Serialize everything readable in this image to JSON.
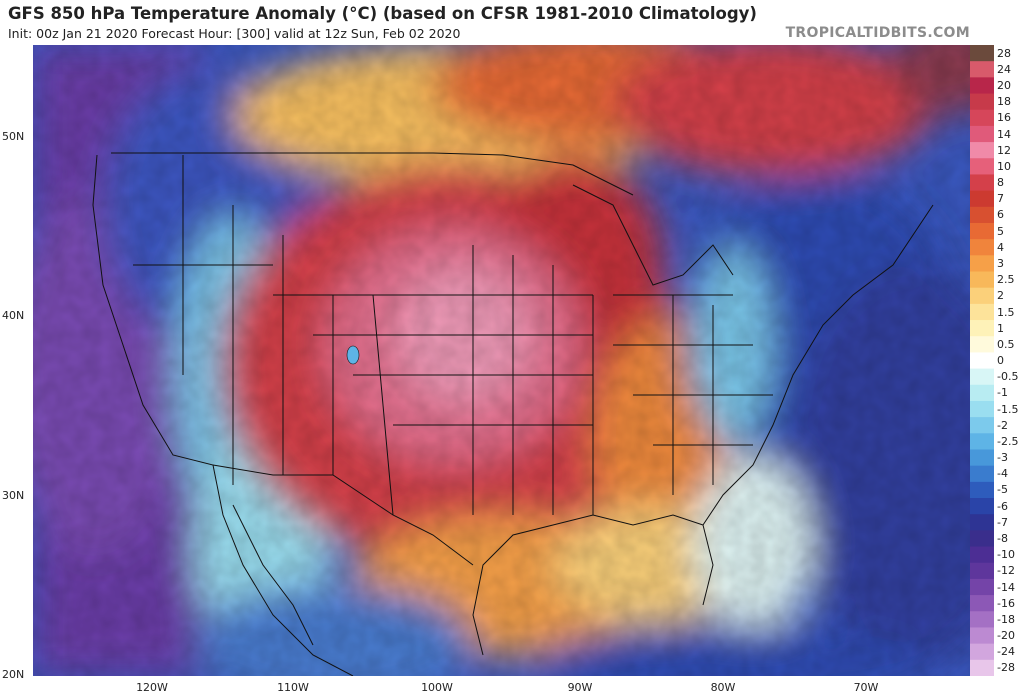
{
  "header": {
    "title": "GFS 850 hPa Temperature Anomaly (°C) (based on CFSR 1981-2010 Climatology)",
    "subtitle": "Init: 00z Jan 21 2020   Forecast Hour: [300]   valid at 12z Sun, Feb 02 2020",
    "watermark": "TROPICALTIDBITS.COM"
  },
  "map": {
    "lat_labels": [
      "50N",
      "40N",
      "30N",
      "20N"
    ],
    "lon_labels": [
      "120W",
      "110W",
      "100W",
      "90W",
      "80W",
      "70W"
    ]
  },
  "colorbar": {
    "levels": [
      "28",
      "24",
      "20",
      "18",
      "16",
      "14",
      "12",
      "10",
      "8",
      "7",
      "6",
      "5",
      "4",
      "3",
      "2.5",
      "2",
      "1.5",
      "1",
      "0.5",
      "0",
      "-0.5",
      "-1",
      "-1.5",
      "-2",
      "-2.5",
      "-3",
      "-4",
      "-5",
      "-6",
      "-7",
      "-8",
      "-10",
      "-12",
      "-14",
      "-16",
      "-18",
      "-20",
      "-24",
      "-28"
    ],
    "colors": [
      "#6b4a3c",
      "#d85a6b",
      "#b8264a",
      "#c73a4a",
      "#d6465a",
      "#e05a7a",
      "#f08aa8",
      "#e6607a",
      "#d4404a",
      "#cc3a30",
      "#d85030",
      "#e86a34",
      "#f0843c",
      "#f6a048",
      "#f8b85a",
      "#fbd07a",
      "#fde39a",
      "#fef2b8",
      "#fffadc",
      "#ffffff",
      "#d8f6f6",
      "#b8ecf2",
      "#9adef0",
      "#7ccaec",
      "#5eb4e6",
      "#4898da",
      "#3a7cce",
      "#2e5cbc",
      "#2a44a8",
      "#2e3494",
      "#3a2e8c",
      "#4c2e94",
      "#5e369c",
      "#7444a8",
      "#8c58b6",
      "#a470c4",
      "#bc8ad2",
      "#d2a6de",
      "#e8c6ea"
    ]
  }
}
